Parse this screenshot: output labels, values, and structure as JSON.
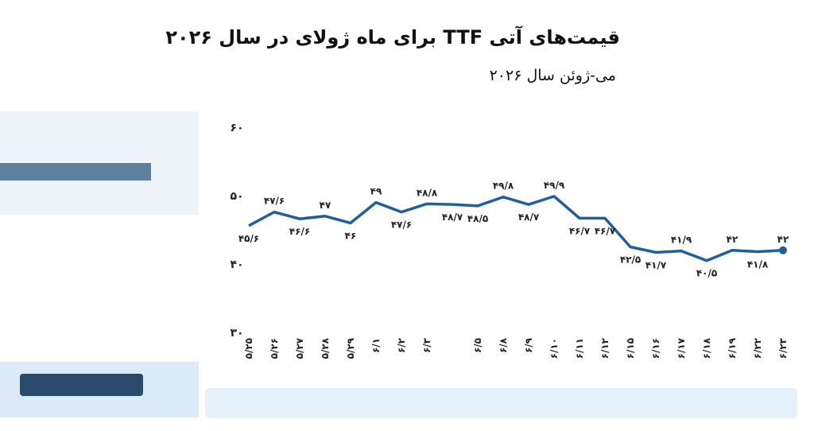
{
  "chart_data": {
    "type": "line",
    "title": "قیمت‌های آتی TTF برای ماه ژولای در سال ۲۰۲۶",
    "subtitle": "می-ژوئن سال ۲۰۲۶",
    "categories": [
      "۵/۲۵",
      "۵/۲۶",
      "۵/۲۷",
      "۵/۲۸",
      "۵/۲۹",
      "۶/۱",
      "۶/۲",
      "۶/۳",
      null,
      "۶/۵",
      "۶/۸",
      "۶/۹",
      "۶/۱۰",
      "۶/۱۱",
      "۶/۱۲",
      "۶/۱۵",
      "۶/۱۶",
      "۶/۱۷",
      "۶/۱۸",
      "۶/۱۹",
      "۶/۲۲",
      "۶/۲۳"
    ],
    "series": [
      {
        "color": "#1f5fa0",
        "values": [
          45.6,
          47.6,
          46.6,
          47,
          46,
          49,
          47.6,
          48.8,
          48.7,
          48.5,
          49.8,
          48.7,
          49.9,
          46.7,
          46.7,
          42.5,
          41.7,
          41.9,
          40.5,
          42,
          41.8,
          42
        ],
        "value_labels": [
          "۴۵/۶",
          "۴۷/۶",
          "۴۶/۶",
          "۴۷",
          "۴۶",
          "۴۹",
          "۴۷/۶",
          "۴۸/۸",
          "۴۸/۷",
          "۴۸/۵",
          "۴۹/۸",
          "۴۸/۷",
          "۴۹/۹",
          "۴۶/۷",
          "۴۶/۷",
          "۴۲/۵",
          "۴۱/۷",
          "۴۱/۹",
          "۴۰/۵",
          "۴۲",
          "۴۱/۸",
          "۴۲"
        ]
      }
    ],
    "ylim": [
      30,
      60
    ],
    "yticks": [
      {
        "value": 30,
        "label": "۳۰"
      },
      {
        "value": 40,
        "label": "۴۰"
      },
      {
        "value": 50,
        "label": "۵۰"
      },
      {
        "value": 60,
        "label": "۶۰"
      }
    ]
  }
}
